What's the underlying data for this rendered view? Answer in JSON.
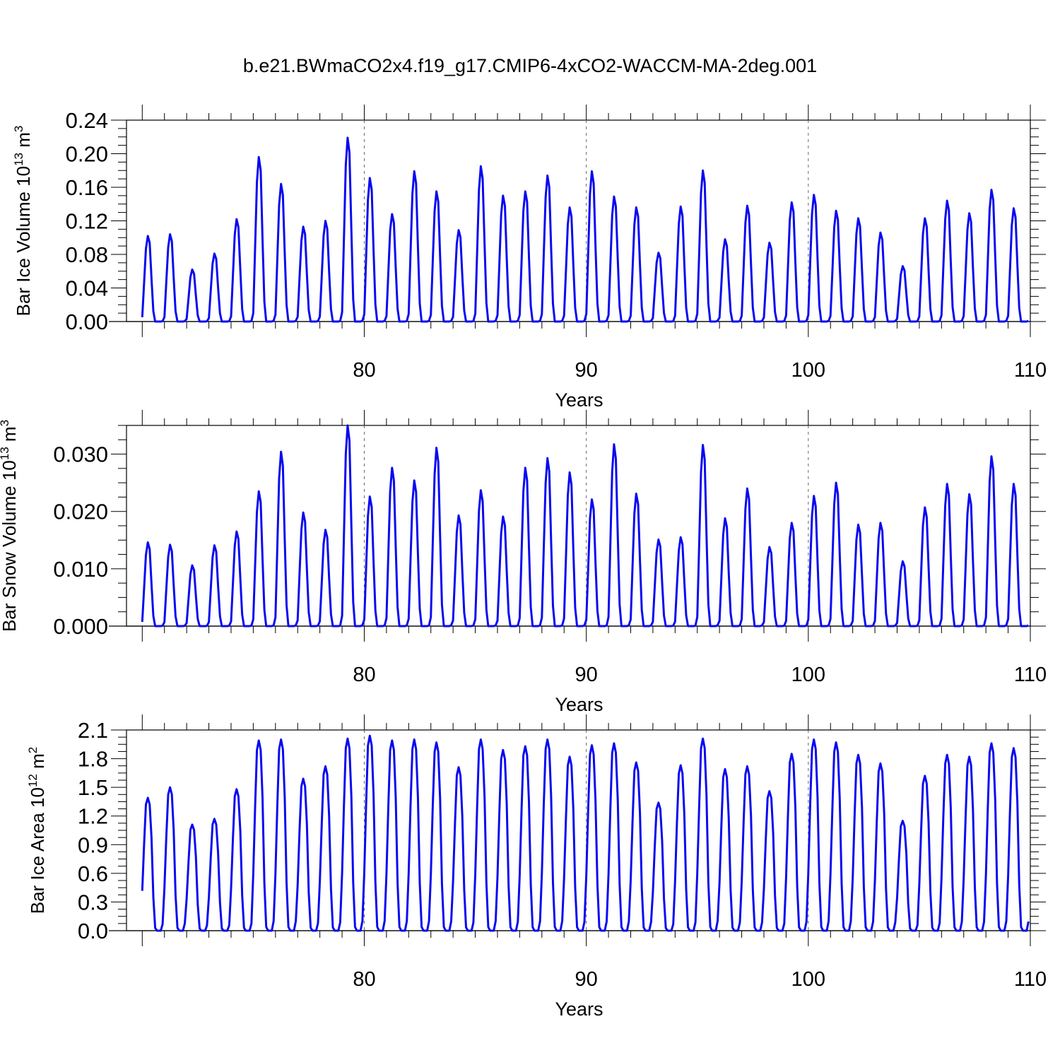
{
  "figure_title": "b.e21.BWmaCO2x4.f19_g17.CMIP6-4xCO2-WACCM-MA-2deg.001",
  "colors": {
    "series": "#0a0af0",
    "axis": "#000000",
    "reference_lines": "#666666"
  },
  "chart_data": [
    {
      "type": "line",
      "title": "",
      "ylabel": {
        "base": "Bar Ice Volume 10",
        "exponent": "13",
        "unit": " m",
        "unit_exponent": "3"
      },
      "xlabel": "Years",
      "xlim": [
        69.29,
        110
      ],
      "ylim": [
        0,
        0.24
      ],
      "xticks": [
        80,
        90,
        100,
        110
      ],
      "xtick_labels": [
        "80",
        "90",
        "100",
        "110"
      ],
      "yticks": [
        0,
        0.04,
        0.08,
        0.12,
        0.16,
        0.2,
        0.24
      ],
      "ytick_labels": [
        "0.00",
        "0.04",
        "0.08",
        "0.12",
        "0.16",
        "0.20",
        "0.24"
      ],
      "x_reference_lines": [
        80,
        90,
        100
      ],
      "start_year": 70.0,
      "series": [
        {
          "name": "Bar Ice Volume",
          "annual_peaks": [
            0.102,
            0.104,
            0.062,
            0.081,
            0.122,
            0.196,
            0.164,
            0.113,
            0.12,
            0.219,
            0.171,
            0.128,
            0.179,
            0.155,
            0.109,
            0.185,
            0.15,
            0.155,
            0.174,
            0.136,
            0.179,
            0.149,
            0.136,
            0.082,
            0.137,
            0.18,
            0.098,
            0.138,
            0.094,
            0.142,
            0.151,
            0.132,
            0.123,
            0.106,
            0.066,
            0.123,
            0.144,
            0.129,
            0.157,
            0.135
          ]
        }
      ]
    },
    {
      "type": "line",
      "title": "",
      "ylabel": {
        "base": "Bar Snow Volume 10",
        "exponent": "13",
        "unit": " m",
        "unit_exponent": "3"
      },
      "xlabel": "Years",
      "xlim": [
        69.29,
        110
      ],
      "ylim": [
        0,
        0.035
      ],
      "xticks": [
        80,
        90,
        100,
        110
      ],
      "xtick_labels": [
        "80",
        "90",
        "100",
        "110"
      ],
      "yticks": [
        0,
        0.01,
        0.02,
        0.03
      ],
      "ytick_labels": [
        "0.000",
        "0.010",
        "0.020",
        "0.030"
      ],
      "x_reference_lines": [
        80,
        90,
        100
      ],
      "start_year": 70.0,
      "series": [
        {
          "name": "Bar Snow Volume",
          "annual_peaks": [
            0.0146,
            0.0142,
            0.0106,
            0.0141,
            0.0165,
            0.0235,
            0.0304,
            0.0198,
            0.0168,
            0.0352,
            0.0226,
            0.0276,
            0.0254,
            0.0311,
            0.0193,
            0.0237,
            0.0191,
            0.0276,
            0.0293,
            0.0268,
            0.0221,
            0.0317,
            0.0231,
            0.0151,
            0.0155,
            0.0316,
            0.0188,
            0.024,
            0.0138,
            0.018,
            0.0227,
            0.025,
            0.0177,
            0.018,
            0.0113,
            0.0207,
            0.0248,
            0.023,
            0.0296,
            0.0248
          ]
        }
      ]
    },
    {
      "type": "line",
      "title": "",
      "ylabel": {
        "base": "Bar Ice Area 10",
        "exponent": "12",
        "unit": " m",
        "unit_exponent": "2"
      },
      "xlabel": "Years",
      "xlim": [
        69.29,
        110
      ],
      "ylim": [
        0,
        2.1
      ],
      "xticks": [
        80,
        90,
        100,
        110
      ],
      "xtick_labels": [
        "80",
        "90",
        "100",
        "110"
      ],
      "yticks": [
        0,
        0.3,
        0.6,
        0.9,
        1.2,
        1.5,
        1.8,
        2.1
      ],
      "ytick_labels": [
        "0.0",
        "0.3",
        "0.6",
        "0.9",
        "1.2",
        "1.5",
        "1.8",
        "2.1"
      ],
      "x_reference_lines": [
        80,
        90,
        100
      ],
      "start_year": 70.0,
      "series": [
        {
          "name": "Bar Ice Area",
          "annual_peaks": [
            1.39,
            1.5,
            1.11,
            1.17,
            1.48,
            1.99,
            2.0,
            1.59,
            1.72,
            2.01,
            2.04,
            1.99,
            2.0,
            1.97,
            1.71,
            2.0,
            1.89,
            1.93,
            2.0,
            1.82,
            1.94,
            1.96,
            1.76,
            1.34,
            1.73,
            2.01,
            1.69,
            1.72,
            1.46,
            1.85,
            2.0,
            1.97,
            1.84,
            1.75,
            1.15,
            1.62,
            1.84,
            1.82,
            1.96,
            1.91
          ]
        }
      ]
    }
  ]
}
